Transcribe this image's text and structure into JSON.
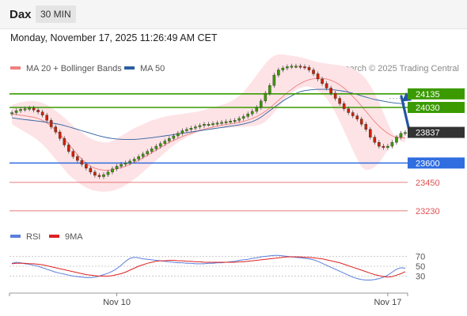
{
  "header": {
    "instrument": "Dax",
    "timeframe": "30 MIN"
  },
  "timestamp": "Monday, November 17, 2025 11:26:49 AM CET",
  "copyright": "Research © 2025 Trading Central",
  "colors": {
    "bollinger": "#f08080",
    "bollinger_fill": "#fde3e6",
    "ma50": "#2b5fa0",
    "resistance": "#3a9a00",
    "support": "#2f6de0",
    "support_minor": "#e05050",
    "current": "#333333",
    "rsi": "#5b7fdc",
    "rsi_ma": "#dd2222",
    "arrow": "#2455a4",
    "candle_up": "#3b9a00",
    "candle_down": "#cc2200"
  },
  "chart_data": [
    {
      "type": "candlestick",
      "legend": [
        {
          "name": "MA 20 + Bollinger Bands",
          "color": "#f08080"
        },
        {
          "name": "MA 50",
          "color": "#2b5fa0"
        }
      ],
      "ylim": [
        23150,
        24250
      ],
      "levels": [
        {
          "value": 24135,
          "label": "24135",
          "kind": "resistance"
        },
        {
          "value": 24030,
          "label": "24030",
          "kind": "resistance"
        },
        {
          "value": 23837,
          "label": "23837",
          "kind": "current"
        },
        {
          "value": 23600,
          "label": "23600",
          "kind": "support"
        },
        {
          "value": 23450,
          "label": "23450",
          "kind": "support_minor"
        },
        {
          "value": 23230,
          "label": "23230",
          "kind": "support_minor"
        }
      ],
      "x_ticks": [
        {
          "index": 24,
          "label": "Nov 10"
        },
        {
          "index": 86,
          "label": "Nov 17"
        }
      ],
      "bars": 91,
      "close": [
        23990,
        24005,
        24015,
        24020,
        24025,
        24010,
        23995,
        23970,
        23930,
        23880,
        23840,
        23790,
        23740,
        23690,
        23650,
        23620,
        23590,
        23560,
        23530,
        23505,
        23495,
        23510,
        23530,
        23555,
        23575,
        23590,
        23600,
        23615,
        23630,
        23650,
        23670,
        23690,
        23710,
        23730,
        23750,
        23770,
        23790,
        23810,
        23830,
        23850,
        23860,
        23870,
        23880,
        23890,
        23900,
        23900,
        23905,
        23910,
        23915,
        23920,
        23925,
        23930,
        23945,
        23960,
        23980,
        24000,
        24030,
        24080,
        24140,
        24200,
        24280,
        24320,
        24335,
        24345,
        24350,
        24350,
        24345,
        24340,
        24320,
        24290,
        24250,
        24215,
        24180,
        24140,
        24100,
        24060,
        24020,
        23990,
        23965,
        23940,
        23900,
        23860,
        23800,
        23760,
        23730,
        23720,
        23730,
        23760,
        23800,
        23830,
        23837
      ],
      "ma20": [
        23980,
        23975,
        23970,
        23965,
        23960,
        23955,
        23945,
        23930,
        23910,
        23885,
        23855,
        23820,
        23785,
        23745,
        23705,
        23665,
        23630,
        23600,
        23575,
        23560,
        23550,
        23545,
        23545,
        23548,
        23555,
        23565,
        23575,
        23590,
        23605,
        23620,
        23640,
        23660,
        23680,
        23700,
        23720,
        23740,
        23760,
        23775,
        23790,
        23805,
        23818,
        23830,
        23842,
        23852,
        23862,
        23870,
        23878,
        23885,
        23892,
        23898,
        23903,
        23908,
        23915,
        23922,
        23932,
        23945,
        23960,
        23978,
        24000,
        24025,
        24055,
        24085,
        24115,
        24145,
        24170,
        24195,
        24215,
        24232,
        24245,
        24252,
        24255,
        24255,
        24250,
        24240,
        24225,
        24205,
        24180,
        24150,
        24115,
        24080,
        24040,
        24000,
        23960,
        23920,
        23885,
        23855,
        23830,
        23810,
        23800,
        23795,
        23795
      ],
      "bb_upper": [
        24050,
        24060,
        24070,
        24075,
        24080,
        24080,
        24075,
        24065,
        24050,
        24030,
        24005,
        23980,
        23950,
        23920,
        23890,
        23860,
        23835,
        23810,
        23790,
        23775,
        23765,
        23760,
        23760,
        23770,
        23790,
        23810,
        23830,
        23850,
        23870,
        23885,
        23900,
        23915,
        23930,
        23940,
        23950,
        23960,
        23965,
        23970,
        23975,
        23980,
        23985,
        23990,
        23995,
        24000,
        24010,
        24020,
        24030,
        24040,
        24050,
        24060,
        24075,
        24095,
        24120,
        24150,
        24190,
        24235,
        24280,
        24325,
        24370,
        24405,
        24430,
        24440,
        24440,
        24435,
        24430,
        24425,
        24420,
        24410,
        24400,
        24390,
        24380,
        24375,
        24370,
        24365,
        24360,
        24355,
        24350,
        24340,
        24330,
        24310,
        24285,
        24250,
        24200,
        24140,
        24070,
        23990,
        23910,
        23840,
        23790,
        23770,
        23760
      ],
      "bb_lower": [
        23900,
        23880,
        23860,
        23840,
        23820,
        23800,
        23775,
        23745,
        23710,
        23670,
        23630,
        23590,
        23550,
        23510,
        23480,
        23455,
        23430,
        23410,
        23395,
        23385,
        23380,
        23378,
        23380,
        23385,
        23395,
        23410,
        23430,
        23450,
        23475,
        23500,
        23530,
        23560,
        23590,
        23620,
        23650,
        23680,
        23710,
        23735,
        23760,
        23780,
        23800,
        23815,
        23830,
        23845,
        23855,
        23860,
        23865,
        23868,
        23870,
        23872,
        23874,
        23876,
        23878,
        23880,
        23882,
        23885,
        23890,
        23900,
        23920,
        23950,
        23990,
        24030,
        24070,
        24110,
        24140,
        24165,
        24180,
        24190,
        24190,
        24180,
        24160,
        24135,
        24100,
        24050,
        23990,
        23920,
        23850,
        23775,
        23700,
        23630,
        23570,
        23545,
        23550,
        23570,
        23600,
        23650,
        23700,
        23760,
        23810,
        23830,
        23840
      ],
      "ma50": [
        23950,
        23945,
        23940,
        23936,
        23932,
        23928,
        23924,
        23920,
        23915,
        23910,
        23905,
        23898,
        23890,
        23880,
        23870,
        23860,
        23850,
        23840,
        23830,
        23820,
        23810,
        23802,
        23795,
        23790,
        23786,
        23784,
        23782,
        23782,
        23783,
        23785,
        23788,
        23792,
        23796,
        23800,
        23805,
        23810,
        23815,
        23820,
        23825,
        23830,
        23835,
        23840,
        23845,
        23850,
        23855,
        23860,
        23865,
        23870,
        23875,
        23880,
        23885,
        23890,
        23895,
        23902,
        23910,
        23920,
        23935,
        23955,
        23980,
        24005,
        24030,
        24055,
        24080,
        24100,
        24120,
        24138,
        24152,
        24160,
        24165,
        24168,
        24170,
        24170,
        24170,
        24168,
        24165,
        24160,
        24155,
        24148,
        24140,
        24130,
        24120,
        24110,
        24100,
        24092,
        24085,
        24078,
        24072,
        24067,
        24063,
        24060,
        24058
      ],
      "rsi_ylim": [
        10,
        90
      ],
      "rsi_ticks": [
        {
          "value": 70,
          "label": "70"
        },
        {
          "value": 50,
          "label": "50"
        },
        {
          "value": 30,
          "label": "30"
        }
      ],
      "rsi_legend": [
        {
          "name": "RSI",
          "color": "#5b7fdc"
        },
        {
          "name": "9MA",
          "color": "#dd2222"
        }
      ],
      "rsi": [
        56,
        58,
        57,
        55,
        54,
        52,
        50,
        47,
        44,
        41,
        38,
        36,
        34,
        32,
        30,
        29,
        28,
        27,
        27,
        28,
        30,
        33,
        36,
        40,
        45,
        52,
        60,
        66,
        68,
        67,
        65,
        64,
        63,
        62,
        61,
        60,
        59,
        58,
        57,
        57,
        56,
        56,
        55,
        55,
        55,
        56,
        56,
        57,
        57,
        58,
        59,
        60,
        62,
        63,
        64,
        66,
        67,
        69,
        70,
        71,
        72,
        72,
        71,
        70,
        69,
        68,
        67,
        66,
        65,
        63,
        60,
        56,
        52,
        48,
        44,
        40,
        36,
        32,
        28,
        25,
        23,
        22,
        22,
        23,
        25,
        28,
        32,
        38,
        44,
        47,
        46
      ],
      "rsi_ma": [
        55,
        56,
        56,
        56,
        55,
        55,
        54,
        53,
        51,
        49,
        47,
        45,
        43,
        41,
        39,
        37,
        35,
        33,
        32,
        31,
        30,
        30,
        30,
        31,
        33,
        35,
        38,
        42,
        46,
        50,
        53,
        56,
        58,
        60,
        61,
        61,
        62,
        62,
        61,
        61,
        60,
        60,
        59,
        59,
        58,
        58,
        58,
        58,
        58,
        58,
        58,
        58,
        59,
        59,
        60,
        61,
        62,
        63,
        64,
        65,
        66,
        67,
        68,
        69,
        69,
        69,
        69,
        68,
        68,
        67,
        66,
        65,
        63,
        61,
        59,
        57,
        54,
        51,
        48,
        45,
        42,
        39,
        36,
        33,
        31,
        29,
        28,
        29,
        32,
        35,
        39
      ]
    }
  ]
}
